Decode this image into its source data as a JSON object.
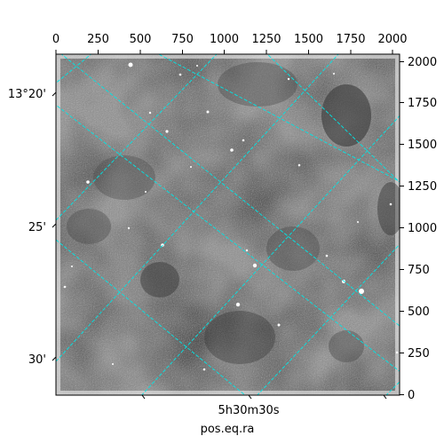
{
  "figure": {
    "xlabel": "pos.eq.ra",
    "image_description": "grayscale astronomical sky image with bright star points and dark dust patches",
    "grid_color": "#00e5e5",
    "background": "#ffffff"
  },
  "top_axis": {
    "ticks": [
      "0",
      "250",
      "500",
      "750",
      "1000",
      "1250",
      "1500",
      "1750",
      "2000"
    ]
  },
  "right_axis": {
    "ticks": [
      "0",
      "250",
      "500",
      "750",
      "1000",
      "1250",
      "1500",
      "1750",
      "2000"
    ]
  },
  "left_axis": {
    "ticks": [
      "13°20'",
      "25'",
      "30'"
    ]
  },
  "bottom_axis": {
    "ticks": [
      "5h30m30s"
    ]
  }
}
